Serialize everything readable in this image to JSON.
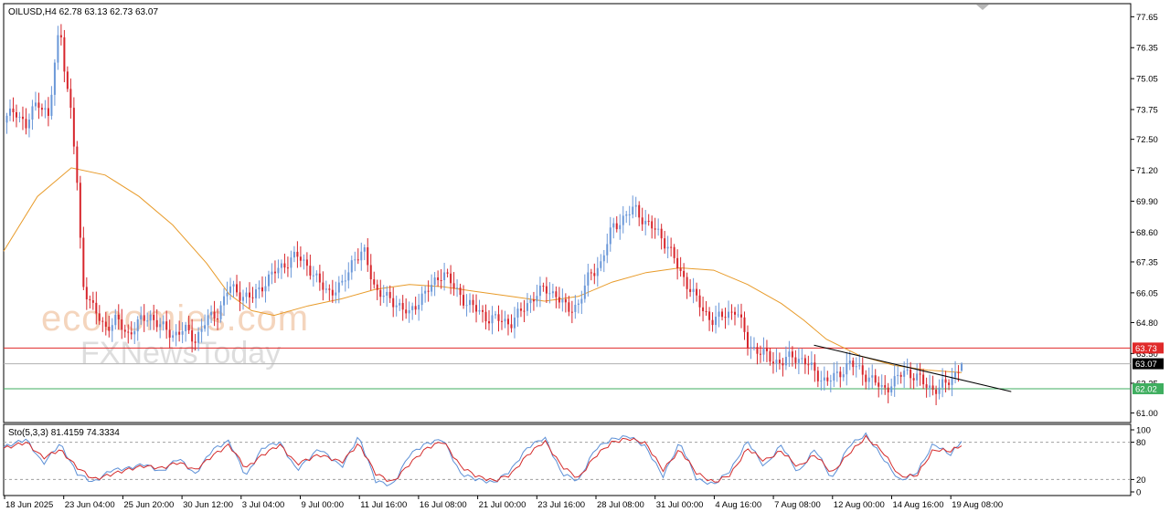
{
  "header": {
    "symbol_line": "OILUSD,H4  62.78 63.13 62.73 63.07"
  },
  "indicator": {
    "label": "Sto(5,3,3) 81.4159 74.3334"
  },
  "watermark": {
    "line1": "economies.com",
    "line2": "FXNewsToday"
  },
  "colors": {
    "bull": "#6a97d8",
    "bear": "#d7262c",
    "ma": "#e89b2a",
    "resistance": "#e02a2a",
    "support": "#3fae5f",
    "current": "#b0b0b0",
    "trendline": "#000000",
    "stoch_main": "#5b8fd6",
    "stoch_signal": "#d42a2a"
  },
  "chart_data": {
    "type": "candlestick",
    "symbol": "OILUSD",
    "timeframe": "H4",
    "ohlc_last": {
      "open": 62.78,
      "high": 63.13,
      "low": 62.73,
      "close": 63.07
    },
    "ylim": [
      60.6,
      78.2
    ],
    "y_ticks": [
      "77.65",
      "76.35",
      "75.05",
      "73.75",
      "72.50",
      "71.20",
      "69.90",
      "68.60",
      "67.35",
      "66.05",
      "64.80",
      "63.50",
      "62.25",
      "61.00"
    ],
    "x_ticks": [
      "18 Jun 2025",
      "23 Jun 04:00",
      "25 Jun 20:00",
      "30 Jun 12:00",
      "3 Jul 04:00",
      "9 Jul 00:00",
      "11 Jul 16:00",
      "16 Jul 08:00",
      "21 Jul 00:00",
      "23 Jul 16:00",
      "28 Jul 08:00",
      "31 Jul 00:00",
      "4 Aug 16:00",
      "7 Aug 08:00",
      "12 Aug 00:00",
      "14 Aug 16:00",
      "19 Aug 08:00"
    ],
    "levels": [
      {
        "name": "resistance",
        "value": 63.73,
        "label": "63.73"
      },
      {
        "name": "current",
        "value": 63.07,
        "label": "63.07"
      },
      {
        "name": "support",
        "value": 62.02,
        "label": "62.02"
      }
    ],
    "trendline": {
      "x_from": 0.719,
      "y_from": 63.85,
      "x_to": 0.894,
      "y_to": 61.9
    },
    "close_path": [
      [
        0.0,
        73.2
      ],
      [
        0.01,
        73.8
      ],
      [
        0.02,
        73.0
      ],
      [
        0.03,
        74.2
      ],
      [
        0.04,
        73.4
      ],
      [
        0.05,
        77.5
      ],
      [
        0.055,
        75.0
      ],
      [
        0.06,
        73.5
      ],
      [
        0.065,
        70.8
      ],
      [
        0.07,
        66.5
      ],
      [
        0.08,
        65.3
      ],
      [
        0.09,
        64.6
      ],
      [
        0.1,
        64.9
      ],
      [
        0.11,
        64.3
      ],
      [
        0.12,
        64.8
      ],
      [
        0.13,
        65.1
      ],
      [
        0.14,
        64.6
      ],
      [
        0.15,
        64.3
      ],
      [
        0.16,
        64.5
      ],
      [
        0.17,
        64.1
      ],
      [
        0.18,
        64.9
      ],
      [
        0.19,
        65.2
      ],
      [
        0.2,
        66.3
      ],
      [
        0.21,
        66.0
      ],
      [
        0.22,
        65.8
      ],
      [
        0.23,
        66.4
      ],
      [
        0.24,
        66.9
      ],
      [
        0.25,
        67.3
      ],
      [
        0.26,
        67.6
      ],
      [
        0.27,
        67.2
      ],
      [
        0.28,
        66.4
      ],
      [
        0.29,
        66.1
      ],
      [
        0.3,
        66.3
      ],
      [
        0.31,
        67.5
      ],
      [
        0.32,
        67.7
      ],
      [
        0.33,
        66.2
      ],
      [
        0.34,
        65.8
      ],
      [
        0.35,
        65.6
      ],
      [
        0.36,
        65.1
      ],
      [
        0.37,
        65.9
      ],
      [
        0.38,
        66.3
      ],
      [
        0.39,
        67.0
      ],
      [
        0.4,
        66.2
      ],
      [
        0.41,
        65.7
      ],
      [
        0.42,
        65.3
      ],
      [
        0.43,
        65.0
      ],
      [
        0.44,
        64.9
      ],
      [
        0.45,
        64.8
      ],
      [
        0.46,
        65.3
      ],
      [
        0.47,
        65.9
      ],
      [
        0.48,
        66.2
      ],
      [
        0.49,
        66.0
      ],
      [
        0.5,
        65.3
      ],
      [
        0.51,
        65.6
      ],
      [
        0.52,
        66.8
      ],
      [
        0.53,
        67.3
      ],
      [
        0.54,
        68.8
      ],
      [
        0.55,
        69.2
      ],
      [
        0.56,
        69.6
      ],
      [
        0.57,
        69.0
      ],
      [
        0.58,
        68.6
      ],
      [
        0.59,
        68.0
      ],
      [
        0.6,
        66.9
      ],
      [
        0.61,
        66.2
      ],
      [
        0.62,
        65.3
      ],
      [
        0.63,
        64.9
      ],
      [
        0.64,
        65.1
      ],
      [
        0.65,
        65.4
      ],
      [
        0.66,
        63.9
      ],
      [
        0.67,
        63.6
      ],
      [
        0.68,
        63.3
      ],
      [
        0.69,
        63.1
      ],
      [
        0.7,
        63.4
      ],
      [
        0.71,
        63.2
      ],
      [
        0.72,
        62.7
      ],
      [
        0.73,
        62.3
      ],
      [
        0.74,
        62.6
      ],
      [
        0.75,
        63.1
      ],
      [
        0.76,
        62.8
      ],
      [
        0.77,
        62.4
      ],
      [
        0.78,
        62.0
      ],
      [
        0.79,
        62.3
      ],
      [
        0.8,
        62.8
      ],
      [
        0.81,
        62.5
      ],
      [
        0.82,
        62.1
      ],
      [
        0.83,
        62.0
      ],
      [
        0.84,
        62.4
      ],
      [
        0.85,
        63.07
      ]
    ],
    "ma_path": [
      [
        0.0,
        67.8
      ],
      [
        0.03,
        70.1
      ],
      [
        0.06,
        71.3
      ],
      [
        0.09,
        71.0
      ],
      [
        0.12,
        70.1
      ],
      [
        0.15,
        68.9
      ],
      [
        0.18,
        67.3
      ],
      [
        0.2,
        66.0
      ],
      [
        0.22,
        65.3
      ],
      [
        0.24,
        65.1
      ],
      [
        0.27,
        65.5
      ],
      [
        0.3,
        65.8
      ],
      [
        0.33,
        66.2
      ],
      [
        0.36,
        66.4
      ],
      [
        0.39,
        66.3
      ],
      [
        0.42,
        66.1
      ],
      [
        0.45,
        65.9
      ],
      [
        0.48,
        65.7
      ],
      [
        0.51,
        65.9
      ],
      [
        0.54,
        66.5
      ],
      [
        0.57,
        66.9
      ],
      [
        0.6,
        67.1
      ],
      [
        0.63,
        67.0
      ],
      [
        0.66,
        66.4
      ],
      [
        0.69,
        65.6
      ],
      [
        0.71,
        64.9
      ],
      [
        0.73,
        64.1
      ],
      [
        0.76,
        63.4
      ],
      [
        0.79,
        63.0
      ],
      [
        0.82,
        62.8
      ],
      [
        0.85,
        62.7
      ]
    ],
    "stochastic": {
      "ylim": [
        0,
        100
      ],
      "levels": [
        20,
        80
      ],
      "y_ticks": [
        "100",
        "80",
        "20",
        "0"
      ],
      "main": [
        [
          0.0,
          72
        ],
        [
          0.02,
          85
        ],
        [
          0.035,
          45
        ],
        [
          0.05,
          78
        ],
        [
          0.065,
          30
        ],
        [
          0.08,
          15
        ],
        [
          0.095,
          35
        ],
        [
          0.11,
          38
        ],
        [
          0.125,
          45
        ],
        [
          0.14,
          32
        ],
        [
          0.155,
          55
        ],
        [
          0.17,
          28
        ],
        [
          0.185,
          68
        ],
        [
          0.2,
          82
        ],
        [
          0.215,
          25
        ],
        [
          0.23,
          72
        ],
        [
          0.245,
          80
        ],
        [
          0.26,
          35
        ],
        [
          0.28,
          70
        ],
        [
          0.3,
          40
        ],
        [
          0.315,
          90
        ],
        [
          0.33,
          18
        ],
        [
          0.345,
          10
        ],
        [
          0.36,
          60
        ],
        [
          0.375,
          78
        ],
        [
          0.39,
          85
        ],
        [
          0.405,
          30
        ],
        [
          0.42,
          20
        ],
        [
          0.435,
          15
        ],
        [
          0.45,
          35
        ],
        [
          0.465,
          72
        ],
        [
          0.48,
          88
        ],
        [
          0.495,
          30
        ],
        [
          0.51,
          18
        ],
        [
          0.525,
          70
        ],
        [
          0.54,
          85
        ],
        [
          0.555,
          90
        ],
        [
          0.57,
          72
        ],
        [
          0.585,
          25
        ],
        [
          0.6,
          80
        ],
        [
          0.615,
          20
        ],
        [
          0.63,
          12
        ],
        [
          0.645,
          35
        ],
        [
          0.66,
          82
        ],
        [
          0.675,
          40
        ],
        [
          0.69,
          76
        ],
        [
          0.705,
          30
        ],
        [
          0.72,
          70
        ],
        [
          0.735,
          20
        ],
        [
          0.75,
          75
        ],
        [
          0.765,
          92
        ],
        [
          0.78,
          55
        ],
        [
          0.795,
          18
        ],
        [
          0.81,
          30
        ],
        [
          0.825,
          78
        ],
        [
          0.84,
          60
        ],
        [
          0.85,
          81.4159
        ]
      ],
      "signal": [
        [
          0.0,
          70
        ],
        [
          0.02,
          80
        ],
        [
          0.035,
          55
        ],
        [
          0.05,
          68
        ],
        [
          0.065,
          40
        ],
        [
          0.08,
          20
        ],
        [
          0.095,
          28
        ],
        [
          0.11,
          36
        ],
        [
          0.125,
          42
        ],
        [
          0.14,
          38
        ],
        [
          0.155,
          48
        ],
        [
          0.17,
          35
        ],
        [
          0.185,
          58
        ],
        [
          0.2,
          76
        ],
        [
          0.215,
          38
        ],
        [
          0.23,
          60
        ],
        [
          0.245,
          76
        ],
        [
          0.26,
          45
        ],
        [
          0.28,
          60
        ],
        [
          0.3,
          48
        ],
        [
          0.315,
          78
        ],
        [
          0.33,
          30
        ],
        [
          0.345,
          15
        ],
        [
          0.36,
          45
        ],
        [
          0.375,
          70
        ],
        [
          0.39,
          82
        ],
        [
          0.405,
          42
        ],
        [
          0.42,
          25
        ],
        [
          0.435,
          18
        ],
        [
          0.45,
          28
        ],
        [
          0.465,
          60
        ],
        [
          0.48,
          82
        ],
        [
          0.495,
          42
        ],
        [
          0.51,
          22
        ],
        [
          0.525,
          58
        ],
        [
          0.54,
          80
        ],
        [
          0.555,
          86
        ],
        [
          0.57,
          78
        ],
        [
          0.585,
          35
        ],
        [
          0.6,
          68
        ],
        [
          0.615,
          30
        ],
        [
          0.63,
          15
        ],
        [
          0.645,
          28
        ],
        [
          0.66,
          70
        ],
        [
          0.675,
          50
        ],
        [
          0.69,
          66
        ],
        [
          0.705,
          40
        ],
        [
          0.72,
          60
        ],
        [
          0.735,
          30
        ],
        [
          0.75,
          62
        ],
        [
          0.765,
          88
        ],
        [
          0.78,
          65
        ],
        [
          0.795,
          25
        ],
        [
          0.81,
          26
        ],
        [
          0.825,
          68
        ],
        [
          0.84,
          66
        ],
        [
          0.85,
          74.3334
        ]
      ]
    }
  }
}
